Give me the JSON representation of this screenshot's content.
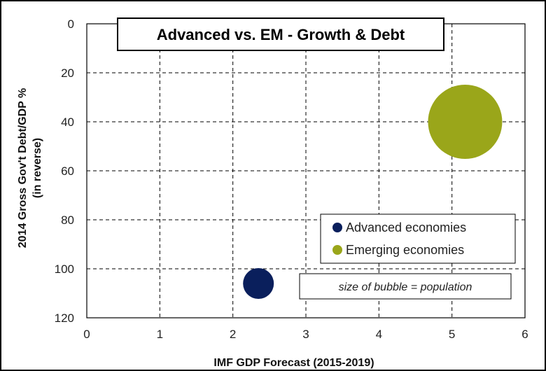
{
  "chart_data": {
    "type": "scatter",
    "title": "Advanced vs. EM - Growth & Debt",
    "xlabel": "IMF GDP Forecast (2015-2019)",
    "ylabel_line1": "2014 Gross Gov't Debt/GDP %",
    "ylabel_line2": "(in reverse)",
    "xlim": [
      0,
      6
    ],
    "ylim": [
      0,
      120
    ],
    "y_reversed": true,
    "x_ticks": [
      "0",
      "1",
      "2",
      "3",
      "4",
      "5",
      "6"
    ],
    "y_ticks": [
      "0",
      "20",
      "40",
      "60",
      "80",
      "100",
      "120"
    ],
    "grid": "dashed",
    "legend_position": "bottom-right",
    "annotation": "size of bubble = population",
    "series": [
      {
        "name": "Advanced economies",
        "color": "#0a1f5c",
        "x": 2.35,
        "y": 106,
        "bubble_size": 1
      },
      {
        "name": "Emerging economies",
        "color": "#9aa61a",
        "x": 5.18,
        "y": 40,
        "bubble_size": 5.8
      }
    ]
  }
}
